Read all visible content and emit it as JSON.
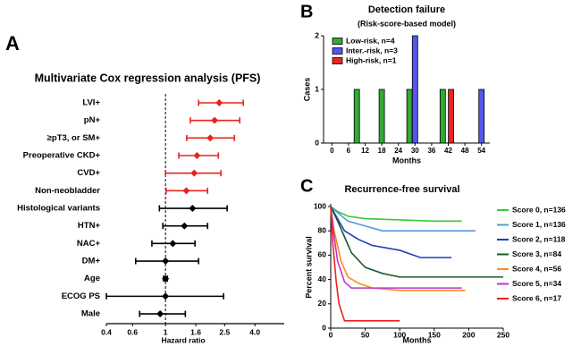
{
  "chart_data": [
    {
      "panel": "A",
      "type": "forest",
      "title": "Multivariate Cox regression analysis (PFS)",
      "categories": [
        "LVI+",
        "pN+",
        "≥pT3, or SM+",
        "Preoperative CKD+",
        "CVD+",
        "Non-neobladder",
        "Histological variants",
        "HTN+",
        "NAC+",
        "DM+",
        "Age",
        "ECOG PS",
        "Male"
      ],
      "values": [
        2.3,
        2.14,
        2.0,
        1.63,
        1.56,
        1.38,
        1.52,
        1.34,
        1.12,
        1.0,
        1.0,
        1.0,
        0.92
      ],
      "ci_low": [
        1.67,
        1.47,
        1.39,
        1.23,
        1.0,
        1.01,
        0.91,
        0.96,
        0.81,
        0.63,
        0.97,
        0.4,
        0.67
      ],
      "ci_high": [
        3.34,
        3.16,
        2.91,
        2.27,
        2.36,
        1.92,
        2.6,
        1.92,
        1.58,
        1.67,
        1.03,
        2.46,
        1.36
      ],
      "point_colors": [
        "#e8231f",
        "#e8231f",
        "#e8231f",
        "#e8231f",
        "#e8231f",
        "#e8231f",
        "#000000",
        "#000000",
        "#000000",
        "#000000",
        "#000000",
        "#000000",
        "#000000"
      ],
      "xlabel": "Hazard ratio",
      "log_x": true,
      "xlim": [
        0.4,
        6.3
      ],
      "xticks": [
        0.4,
        0.6,
        1,
        1.6,
        2.5,
        {
          "value": 4,
          "label": "4.0"
        }
      ],
      "reference_line": 1
    },
    {
      "panel": "B",
      "type": "bar",
      "title": "Detection failure",
      "subtitle": "(Risk-score-based model)",
      "xlabel": "Months",
      "ylabel": "Cases",
      "series": [
        {
          "name": "Low-risk, n=4",
          "color": "#33aa33",
          "x": [
            9,
            18,
            28,
            40
          ],
          "values": [
            1,
            1,
            1,
            1
          ]
        },
        {
          "name": "Inter.-risk, n=3",
          "color": "#5555ee",
          "x": [
            30,
            54
          ],
          "values": [
            2,
            1
          ]
        },
        {
          "name": "High-risk, n=1",
          "color": "#ee2222",
          "x": [
            43
          ],
          "values": [
            1
          ]
        }
      ],
      "xlim": [
        -3,
        57
      ],
      "xticks": [
        0,
        6,
        12,
        18,
        24,
        30,
        36,
        42,
        48,
        54
      ],
      "ylim": [
        0,
        2
      ],
      "yticks": [
        0,
        1,
        2
      ],
      "legend": "upper left"
    },
    {
      "panel": "C",
      "type": "line",
      "title": "Recurrence-free survival",
      "xlabel": "Months",
      "ylabel": "Percent survival",
      "series": [
        {
          "name": "Score 0, n=136",
          "color": "#33cc33",
          "x": [
            0,
            10,
            25,
            50,
            100,
            150,
            190
          ],
          "values": [
            100,
            96,
            92,
            90,
            89,
            88,
            88
          ]
        },
        {
          "name": "Score 1, n=136",
          "color": "#5599dd",
          "x": [
            0,
            10,
            25,
            50,
            75,
            100,
            210
          ],
          "values": [
            100,
            95,
            88,
            84,
            80,
            80,
            80
          ]
        },
        {
          "name": "Score 2, n=118",
          "color": "#1f3fbf",
          "x": [
            0,
            10,
            20,
            40,
            60,
            100,
            130,
            175
          ],
          "values": [
            100,
            90,
            80,
            73,
            68,
            64,
            58,
            58
          ]
        },
        {
          "name": "Score 3, n=84",
          "color": "#1a5c2a",
          "x": [
            0,
            10,
            20,
            30,
            50,
            75,
            100,
            250
          ],
          "values": [
            100,
            88,
            75,
            62,
            50,
            45,
            42,
            42
          ]
        },
        {
          "name": "Score 4, n=56",
          "color": "#ff8c1a",
          "x": [
            0,
            5,
            15,
            25,
            40,
            60,
            100,
            195
          ],
          "values": [
            100,
            80,
            55,
            42,
            37,
            33,
            31,
            31
          ]
        },
        {
          "name": "Score 5, n=34",
          "color": "#bb33cc",
          "x": [
            0,
            5,
            10,
            20,
            30,
            190
          ],
          "values": [
            100,
            75,
            55,
            38,
            33,
            33
          ]
        },
        {
          "name": "Score 6, n=17",
          "color": "#ee2222",
          "x": [
            0,
            3,
            8,
            12,
            20,
            100
          ],
          "values": [
            100,
            70,
            38,
            20,
            6,
            6
          ]
        }
      ],
      "xlim": [
        0,
        250
      ],
      "xticks": [
        0,
        50,
        100,
        150,
        200,
        250
      ],
      "ylim": [
        0,
        100
      ],
      "yticks": [
        0,
        20,
        40,
        60,
        80,
        100
      ],
      "legend": "right"
    }
  ]
}
